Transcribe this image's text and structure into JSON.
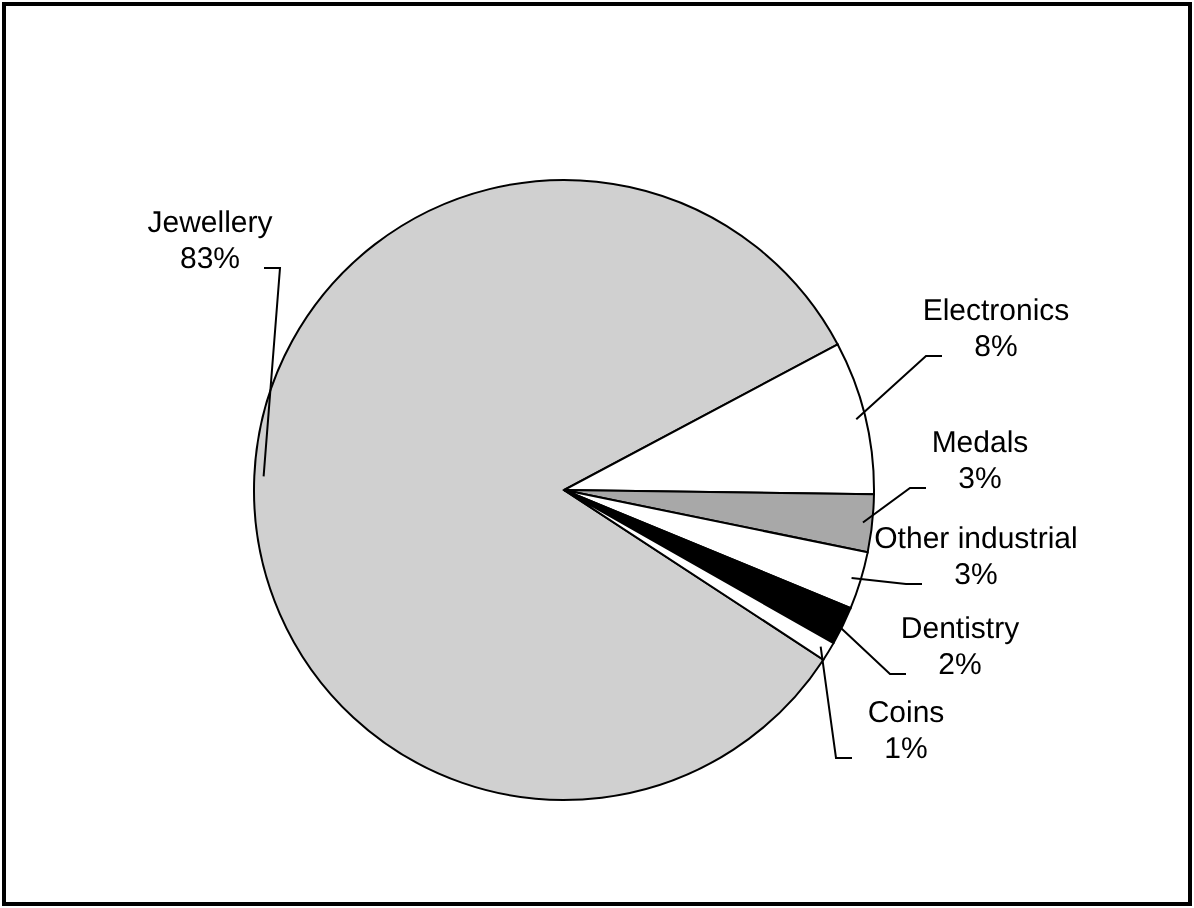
{
  "chart_data": {
    "type": "pie",
    "categories": [
      "Jewellery",
      "Electronics",
      "Medals",
      "Other industrial",
      "Dentistry",
      "Coins"
    ],
    "values": [
      83,
      8,
      3,
      3,
      2,
      1
    ],
    "colors": [
      "#d0d0d0",
      "#ffffff",
      "#a8a8a8",
      "#ffffff",
      "#000000",
      "#ffffff"
    ],
    "value_labels": [
      "83%",
      "8%",
      "3%",
      "3%",
      "2%",
      "1%"
    ]
  }
}
